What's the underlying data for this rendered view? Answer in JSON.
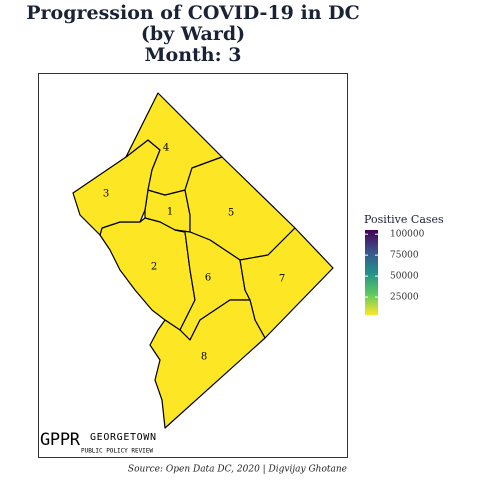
{
  "title": [
    "Progression of COVID-19 in DC",
    "(by Ward)",
    "Month: 3"
  ],
  "wards": [
    {
      "label": "1",
      "cases": 3600
    },
    {
      "label": "2",
      "cases": 3600
    },
    {
      "label": "3",
      "cases": 3600
    },
    {
      "label": "4",
      "cases": 3600
    },
    {
      "label": "5",
      "cases": 3600
    },
    {
      "label": "6",
      "cases": 3600
    },
    {
      "label": "7",
      "cases": 3600
    },
    {
      "label": "8",
      "cases": 3600
    }
  ],
  "legend": {
    "title": "Positive Cases",
    "lim": [
      3600,
      105000
    ],
    "ticks": [
      25000,
      50000,
      75000,
      100000
    ]
  },
  "logo": {
    "mark": "GPPR",
    "name": "GEORGETOWN",
    "subtitle": "PUBLIC POLICY REVIEW"
  },
  "source": "Source: Open Data DC, 2020 | Digvijay Ghotane"
}
